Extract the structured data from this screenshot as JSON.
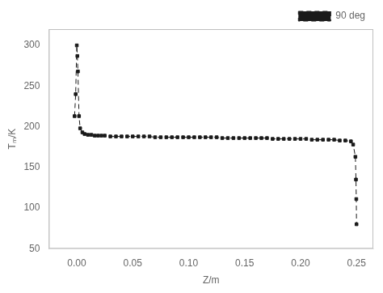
{
  "chart_data": {
    "type": "line",
    "x": [
      -0.002,
      -0.001,
      0.0,
      0.0005,
      0.001,
      0.002,
      0.003,
      0.005,
      0.007,
      0.01,
      0.013,
      0.016,
      0.019,
      0.022,
      0.025,
      0.03,
      0.035,
      0.04,
      0.045,
      0.05,
      0.055,
      0.06,
      0.065,
      0.07,
      0.075,
      0.08,
      0.085,
      0.09,
      0.095,
      0.1,
      0.105,
      0.11,
      0.115,
      0.12,
      0.125,
      0.13,
      0.135,
      0.14,
      0.145,
      0.15,
      0.155,
      0.16,
      0.165,
      0.17,
      0.175,
      0.18,
      0.185,
      0.19,
      0.195,
      0.2,
      0.205,
      0.21,
      0.215,
      0.22,
      0.225,
      0.23,
      0.235,
      0.24,
      0.245,
      0.247,
      0.249,
      0.2495,
      0.2498,
      0.25
    ],
    "series": [
      {
        "name": "90 deg",
        "color": "#1a1a1a",
        "marker": "square",
        "line_style": "dashed",
        "values": [
          213,
          240,
          300,
          287,
          268,
          213,
          198,
          193,
          191,
          190,
          190,
          189,
          189,
          189,
          189,
          188,
          188,
          188,
          188,
          188,
          188,
          188,
          188,
          187,
          187,
          187,
          187,
          187,
          187,
          187,
          187,
          187,
          187,
          187,
          187,
          186,
          186,
          186,
          186,
          186,
          186,
          186,
          186,
          186,
          185,
          185,
          185,
          185,
          185,
          185,
          185,
          184,
          184,
          184,
          184,
          184,
          183,
          183,
          182,
          178,
          163,
          135,
          111,
          80
        ]
      }
    ],
    "x_label": "Z/m",
    "y_label": "Tₘ/K",
    "xlim": [
      -0.025,
      0.265
    ],
    "ylim": [
      50,
      320
    ],
    "xticks": [
      {
        "value": 0.0,
        "label": "0.00"
      },
      {
        "value": 0.05,
        "label": "0.05"
      },
      {
        "value": 0.1,
        "label": "0.10"
      },
      {
        "value": 0.15,
        "label": "0.15"
      },
      {
        "value": 0.2,
        "label": "0.20"
      },
      {
        "value": 0.25,
        "label": "0.25"
      }
    ],
    "yticks": [
      50,
      100,
      150,
      200,
      250,
      300
    ],
    "grid": false,
    "legend": "upper right"
  }
}
